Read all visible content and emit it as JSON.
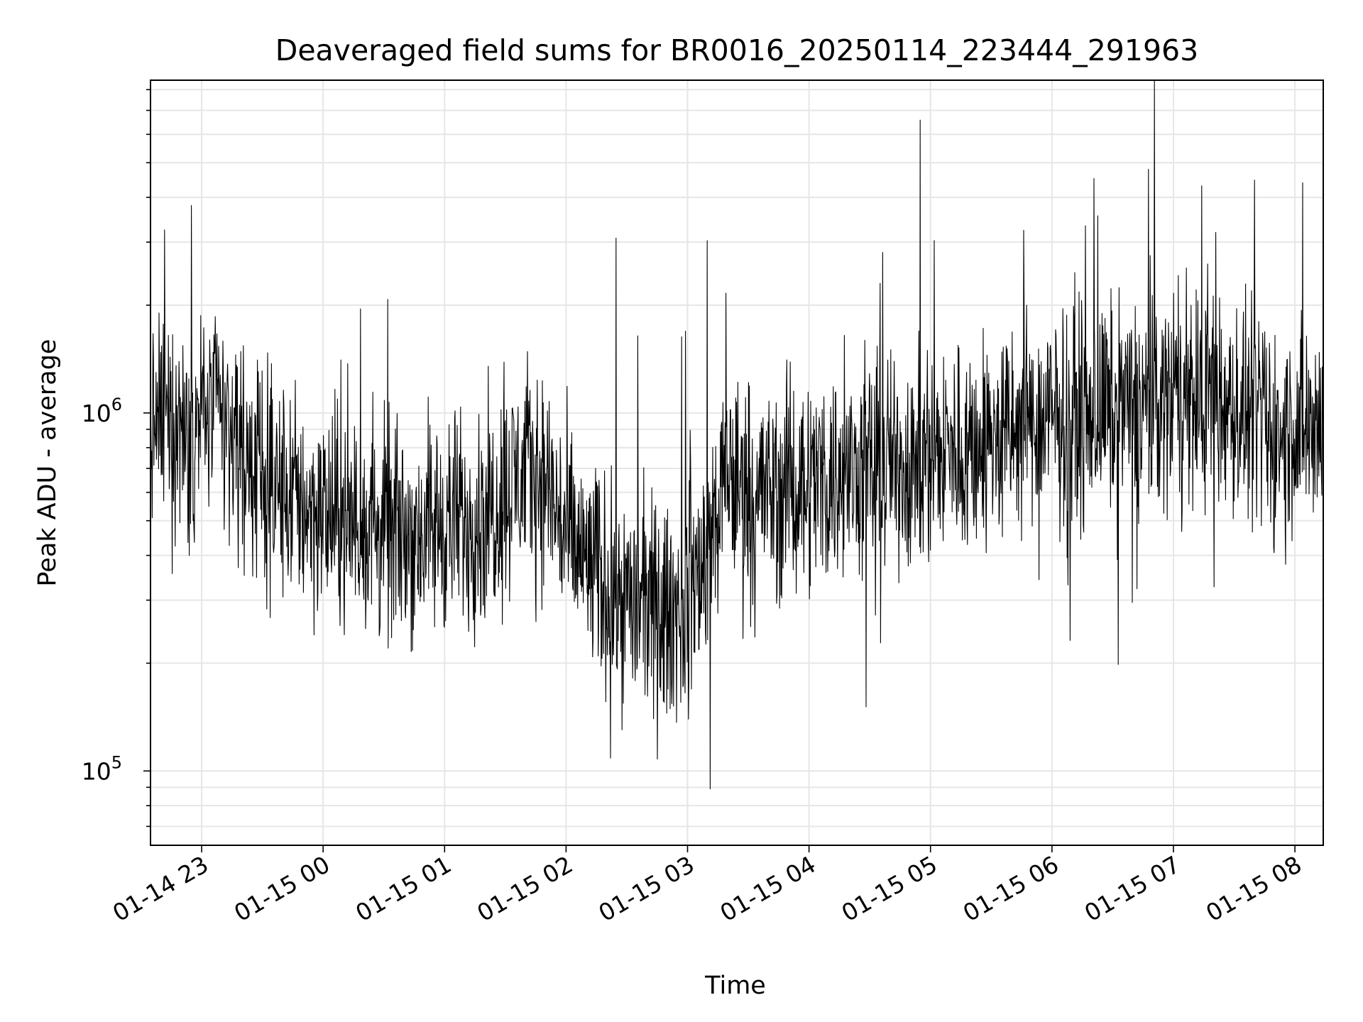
{
  "chart_data": {
    "type": "line",
    "title": "Deaveraged field sums for BR0016_20250114_223444_291963",
    "xlabel": "Time",
    "ylabel": "Peak ADU - average",
    "y_scale": "log",
    "ylim": [
      62000,
      8500000
    ],
    "xlim": [
      "2025-01-14 22:34:44",
      "2025-01-15 08:14:00"
    ],
    "grid": true,
    "x_tick_labels": [
      "01-14 23",
      "01-15 00",
      "01-15 01",
      "01-15 02",
      "01-15 03",
      "01-15 04",
      "01-15 05",
      "01-15 06",
      "01-15 07",
      "01-15 08"
    ],
    "x_ticks": [
      "2025-01-14 23:00",
      "2025-01-15 00:00",
      "2025-01-15 01:00",
      "2025-01-15 02:00",
      "2025-01-15 03:00",
      "2025-01-15 04:00",
      "2025-01-15 05:00",
      "2025-01-15 06:00",
      "2025-01-15 07:00",
      "2025-01-15 08:00"
    ],
    "y_ticks": [
      {
        "value": 100000,
        "base": "10",
        "exp": "5"
      },
      {
        "value": 1000000,
        "base": "10",
        "exp": "6"
      }
    ],
    "series": [
      {
        "color": "#000000",
        "x": [
          "2025-01-14 22:35",
          "2025-01-14 22:40",
          "2025-01-14 22:45",
          "2025-01-14 22:50",
          "2025-01-14 22:55",
          "2025-01-14 23:00",
          "2025-01-14 23:05",
          "2025-01-14 23:10",
          "2025-01-14 23:15",
          "2025-01-14 23:20",
          "2025-01-14 23:25",
          "2025-01-14 23:30",
          "2025-01-14 23:35",
          "2025-01-14 23:40",
          "2025-01-14 23:45",
          "2025-01-14 23:50",
          "2025-01-14 23:55",
          "2025-01-15 00:00",
          "2025-01-15 00:10",
          "2025-01-15 00:20",
          "2025-01-15 00:30",
          "2025-01-15 00:40",
          "2025-01-15 00:50",
          "2025-01-15 01:00",
          "2025-01-15 01:10",
          "2025-01-15 01:20",
          "2025-01-15 01:30",
          "2025-01-15 01:40",
          "2025-01-15 01:50",
          "2025-01-15 02:00",
          "2025-01-15 02:10",
          "2025-01-15 02:20",
          "2025-01-15 02:30",
          "2025-01-15 02:40",
          "2025-01-15 02:50",
          "2025-01-15 03:00",
          "2025-01-15 03:10",
          "2025-01-15 03:20",
          "2025-01-15 03:30",
          "2025-01-15 03:40",
          "2025-01-15 03:50",
          "2025-01-15 04:00",
          "2025-01-15 04:20",
          "2025-01-15 04:40",
          "2025-01-15 05:00",
          "2025-01-15 05:20",
          "2025-01-15 05:40",
          "2025-01-15 06:00",
          "2025-01-15 06:20",
          "2025-01-15 06:40",
          "2025-01-15 07:00",
          "2025-01-15 07:20",
          "2025-01-15 07:40",
          "2025-01-15 07:50",
          "2025-01-15 08:00",
          "2025-01-15 08:10"
        ],
        "y": [
          900000,
          950000,
          880000,
          920000,
          980000,
          1000000,
          1050000,
          950000,
          850000,
          780000,
          720000,
          650000,
          620000,
          600000,
          580000,
          560000,
          540000,
          520000,
          500000,
          480000,
          470000,
          460000,
          470000,
          490000,
          500000,
          520000,
          600000,
          700000,
          650000,
          450000,
          380000,
          330000,
          300000,
          280000,
          270000,
          300000,
          420000,
          650000,
          620000,
          600000,
          620000,
          650000,
          680000,
          720000,
          760000,
          800000,
          870000,
          950000,
          1000000,
          1050000,
          1100000,
          1050000,
          950000,
          850000,
          900000,
          950000
        ]
      }
    ]
  }
}
